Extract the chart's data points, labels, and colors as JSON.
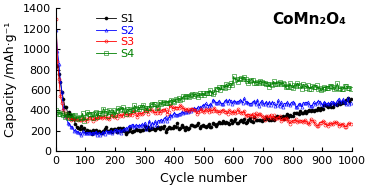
{
  "title": "CoMn₂O₄",
  "xlabel": "Cycle number",
  "ylabel": "Capacity /mAh·g⁻¹",
  "xlim": [
    0,
    1000
  ],
  "ylim": [
    0,
    1400
  ],
  "yticks": [
    0,
    200,
    400,
    600,
    800,
    1000,
    1200,
    1400
  ],
  "xticks": [
    0,
    100,
    200,
    300,
    400,
    500,
    600,
    700,
    800,
    900,
    1000
  ],
  "background_color": "#ffffff",
  "title_fontsize": 11,
  "label_fontsize": 9,
  "tick_fontsize": 8,
  "legend_fontsize": 8,
  "s1_color": "black",
  "s2_color": "blue",
  "s3_color": "red",
  "s4_color": "green"
}
